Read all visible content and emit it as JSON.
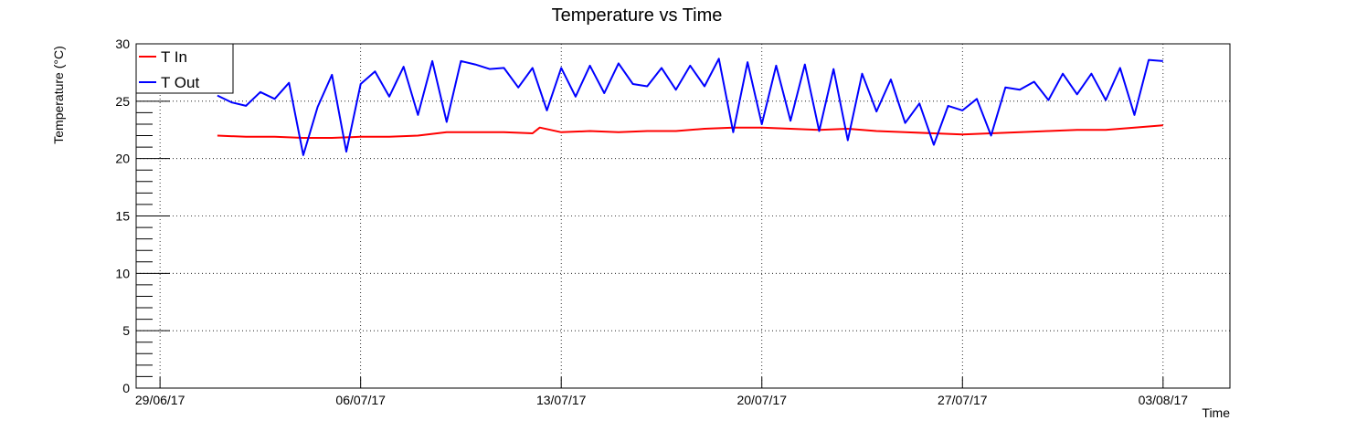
{
  "chart_data": {
    "type": "line",
    "title": "Temperature vs Time",
    "xlabel": "Time",
    "ylabel": "Temperature (°C)",
    "ylim": [
      0,
      30
    ],
    "xlim": [
      "2017-06-28T04:00",
      "2017-08-05T08:00"
    ],
    "y_ticks": [
      "0",
      "5",
      "10",
      "15",
      "20",
      "25",
      "30"
    ],
    "x_ticks": [
      {
        "date": "2017-06-29",
        "label": "29/06/17"
      },
      {
        "date": "2017-07-06",
        "label": "06/07/17"
      },
      {
        "date": "2017-07-13",
        "label": "13/07/17"
      },
      {
        "date": "2017-07-20",
        "label": "20/07/17"
      },
      {
        "date": "2017-07-27",
        "label": "27/07/17"
      },
      {
        "date": "2017-08-03",
        "label": "03/08/17"
      }
    ],
    "grid": true,
    "legend_position": "top-left",
    "series": [
      {
        "name": "T In",
        "color": "#ff0000",
        "x": [
          "2017-07-01T00:00",
          "2017-07-02T00:00",
          "2017-07-03T00:00",
          "2017-07-04T00:00",
          "2017-07-05T00:00",
          "2017-07-06T00:00",
          "2017-07-07T00:00",
          "2017-07-08T00:00",
          "2017-07-09T00:00",
          "2017-07-10T00:00",
          "2017-07-11T00:00",
          "2017-07-12T00:00",
          "2017-07-12T06:00",
          "2017-07-13T00:00",
          "2017-07-14T00:00",
          "2017-07-15T00:00",
          "2017-07-16T00:00",
          "2017-07-17T00:00",
          "2017-07-18T00:00",
          "2017-07-19T00:00",
          "2017-07-20T00:00",
          "2017-07-21T00:00",
          "2017-07-22T00:00",
          "2017-07-23T00:00",
          "2017-07-24T00:00",
          "2017-07-25T00:00",
          "2017-07-26T00:00",
          "2017-07-27T00:00",
          "2017-07-28T00:00",
          "2017-07-29T00:00",
          "2017-07-30T00:00",
          "2017-07-31T00:00",
          "2017-08-01T00:00",
          "2017-08-02T00:00",
          "2017-08-03T00:00"
        ],
        "y": [
          22.0,
          21.9,
          21.9,
          21.8,
          21.8,
          21.9,
          21.9,
          22.0,
          22.3,
          22.3,
          22.3,
          22.2,
          22.7,
          22.3,
          22.4,
          22.3,
          22.4,
          22.4,
          22.6,
          22.7,
          22.7,
          22.6,
          22.5,
          22.6,
          22.4,
          22.3,
          22.2,
          22.1,
          22.2,
          22.3,
          22.4,
          22.5,
          22.5,
          22.7,
          22.9
        ]
      },
      {
        "name": "T Out",
        "color": "#0000ff",
        "x": [
          "2017-07-01T00:00",
          "2017-07-01T12:00",
          "2017-07-02T00:00",
          "2017-07-02T12:00",
          "2017-07-03T00:00",
          "2017-07-03T12:00",
          "2017-07-04T00:00",
          "2017-07-04T12:00",
          "2017-07-05T00:00",
          "2017-07-05T12:00",
          "2017-07-06T00:00",
          "2017-07-06T12:00",
          "2017-07-07T00:00",
          "2017-07-07T12:00",
          "2017-07-08T00:00",
          "2017-07-08T12:00",
          "2017-07-09T00:00",
          "2017-07-09T12:00",
          "2017-07-10T00:00",
          "2017-07-10T12:00",
          "2017-07-11T00:00",
          "2017-07-11T12:00",
          "2017-07-12T00:00",
          "2017-07-12T12:00",
          "2017-07-13T00:00",
          "2017-07-13T12:00",
          "2017-07-14T00:00",
          "2017-07-14T12:00",
          "2017-07-15T00:00",
          "2017-07-15T12:00",
          "2017-07-16T00:00",
          "2017-07-16T12:00",
          "2017-07-17T00:00",
          "2017-07-17T12:00",
          "2017-07-18T00:00",
          "2017-07-18T12:00",
          "2017-07-19T00:00",
          "2017-07-19T12:00",
          "2017-07-20T00:00",
          "2017-07-20T12:00",
          "2017-07-21T00:00",
          "2017-07-21T12:00",
          "2017-07-22T00:00",
          "2017-07-22T12:00",
          "2017-07-23T00:00",
          "2017-07-23T12:00",
          "2017-07-24T00:00",
          "2017-07-24T12:00",
          "2017-07-25T00:00",
          "2017-07-25T12:00",
          "2017-07-26T00:00",
          "2017-07-26T12:00",
          "2017-07-27T00:00",
          "2017-07-27T12:00",
          "2017-07-28T00:00",
          "2017-07-28T12:00",
          "2017-07-29T00:00",
          "2017-07-29T12:00",
          "2017-07-30T00:00",
          "2017-07-30T12:00",
          "2017-07-31T00:00",
          "2017-07-31T12:00",
          "2017-08-01T00:00",
          "2017-08-01T12:00",
          "2017-08-02T00:00",
          "2017-08-02T12:00",
          "2017-08-03T00:00"
        ],
        "y": [
          25.5,
          24.9,
          24.6,
          25.8,
          25.2,
          26.6,
          20.3,
          24.5,
          27.3,
          20.6,
          26.5,
          27.6,
          25.4,
          28.0,
          23.8,
          28.5,
          23.2,
          28.5,
          28.2,
          27.8,
          27.9,
          26.2,
          27.9,
          24.2,
          27.9,
          25.4,
          28.1,
          25.7,
          28.3,
          26.5,
          26.3,
          27.9,
          26.0,
          28.1,
          26.3,
          28.7,
          22.3,
          28.4,
          23.0,
          28.1,
          23.3,
          28.2,
          22.4,
          27.8,
          21.6,
          27.4,
          24.1,
          26.9,
          23.1,
          24.8,
          21.2,
          24.6,
          24.2,
          25.2,
          22.0,
          26.2,
          26.0,
          26.7,
          25.1,
          27.4,
          25.6,
          27.4,
          25.1,
          27.9,
          23.8,
          28.6,
          28.5
        ]
      }
    ]
  }
}
